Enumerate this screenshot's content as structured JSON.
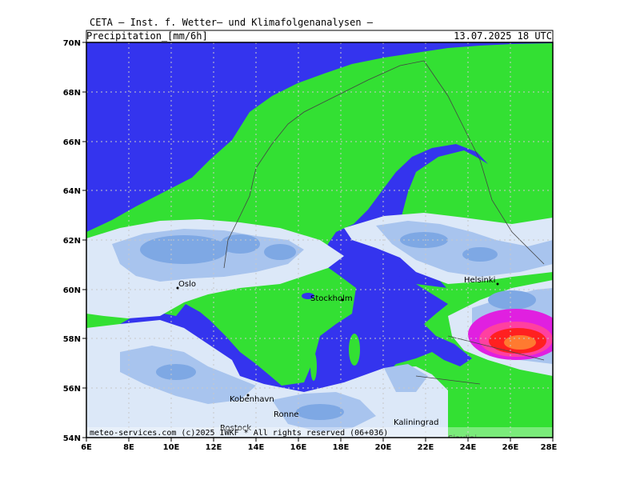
{
  "header": {
    "title": "CETA — Inst. f. Wetter— und Klimafolgenanalysen —",
    "variable": "Precipitation_[mm/6h]",
    "valid_time": "13.07.2025  18 UTC"
  },
  "axes": {
    "lat_labels": [
      "70N",
      "68N",
      "66N",
      "64N",
      "62N",
      "60N",
      "58N",
      "56N",
      "54N"
    ],
    "lon_labels": [
      "6E",
      "8E",
      "10E",
      "12E",
      "14E",
      "16E",
      "18E",
      "20E",
      "22E",
      "24E",
      "26E",
      "28E"
    ]
  },
  "cities": [
    {
      "name": "Oslo"
    },
    {
      "name": "Stockholm"
    },
    {
      "name": "Helsinki"
    },
    {
      "name": "Kobenhavn"
    },
    {
      "name": "Ronne"
    },
    {
      "name": "Rostock"
    },
    {
      "name": "Kaliningrad"
    },
    {
      "name": "Siauliai"
    }
  ],
  "footer": "meteo-services.com  (c)2025 IWKF * All rights reserved (06+036)",
  "colors": {
    "sea": "#3434ee",
    "land": "#33e033",
    "precip_light": "#dce8f8",
    "precip_mid": "#a8c4ee",
    "precip_heavy": "#7ea8e4",
    "intense_1": "#ff2020",
    "intense_2": "#ff7a30",
    "intense_3": "#e020e0"
  }
}
